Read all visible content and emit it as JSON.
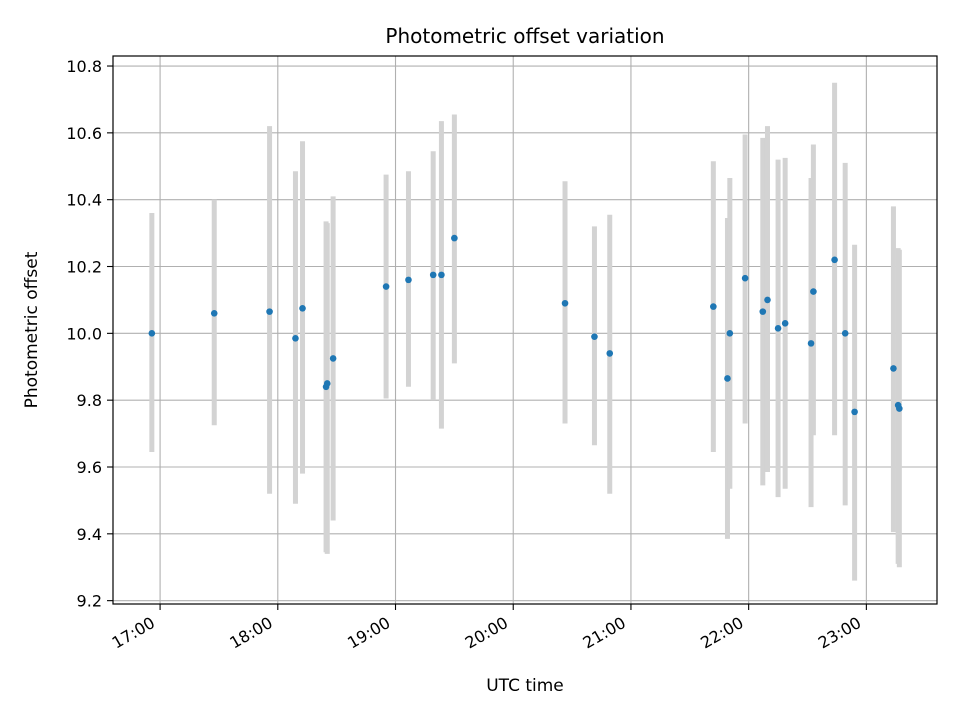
{
  "chart_data": {
    "type": "scatter",
    "title": "Photometric offset variation",
    "xlabel": "UTC time",
    "ylabel": "Photometric offset",
    "x_unit": "UTC time (hours)",
    "xlim": [
      16.6,
      23.6
    ],
    "ylim": [
      9.19,
      10.83
    ],
    "x_ticks": [
      17,
      18,
      19,
      20,
      21,
      22,
      23
    ],
    "x_tick_labels": [
      "17:00",
      "18:00",
      "19:00",
      "20:00",
      "21:00",
      "22:00",
      "23:00"
    ],
    "y_ticks": [
      9.2,
      9.4,
      9.6,
      9.8,
      10.0,
      10.2,
      10.4,
      10.6,
      10.8
    ],
    "y_tick_labels": [
      "9.2",
      "9.4",
      "9.6",
      "9.8",
      "10.0",
      "10.2",
      "10.4",
      "10.6",
      "10.8"
    ],
    "grid": true,
    "colors": {
      "point": "#1f77b4",
      "errorbar": "#d3d3d3",
      "grid": "#b0b0b0"
    },
    "points": [
      {
        "x": 16.93,
        "y": 10.0,
        "ylow": 9.645,
        "yhigh": 10.36
      },
      {
        "x": 17.46,
        "y": 10.06,
        "ylow": 9.725,
        "yhigh": 10.4
      },
      {
        "x": 17.93,
        "y": 10.065,
        "ylow": 9.52,
        "yhigh": 10.62
      },
      {
        "x": 18.15,
        "y": 9.985,
        "ylow": 9.49,
        "yhigh": 10.485
      },
      {
        "x": 18.21,
        "y": 10.075,
        "ylow": 9.58,
        "yhigh": 10.575
      },
      {
        "x": 18.41,
        "y": 9.84,
        "ylow": 9.345,
        "yhigh": 10.335
      },
      {
        "x": 18.42,
        "y": 9.85,
        "ylow": 9.34,
        "yhigh": 10.33
      },
      {
        "x": 18.47,
        "y": 9.925,
        "ylow": 9.44,
        "yhigh": 10.41
      },
      {
        "x": 18.92,
        "y": 10.14,
        "ylow": 9.805,
        "yhigh": 10.475
      },
      {
        "x": 19.11,
        "y": 10.16,
        "ylow": 9.84,
        "yhigh": 10.485
      },
      {
        "x": 19.32,
        "y": 10.175,
        "ylow": 9.8,
        "yhigh": 10.545
      },
      {
        "x": 19.39,
        "y": 10.175,
        "ylow": 9.715,
        "yhigh": 10.635
      },
      {
        "x": 19.5,
        "y": 10.285,
        "ylow": 9.91,
        "yhigh": 10.655
      },
      {
        "x": 20.44,
        "y": 10.09,
        "ylow": 9.73,
        "yhigh": 10.455
      },
      {
        "x": 20.69,
        "y": 9.99,
        "ylow": 9.665,
        "yhigh": 10.32
      },
      {
        "x": 20.82,
        "y": 9.94,
        "ylow": 9.52,
        "yhigh": 10.355
      },
      {
        "x": 21.7,
        "y": 10.08,
        "ylow": 9.645,
        "yhigh": 10.515
      },
      {
        "x": 21.82,
        "y": 9.865,
        "ylow": 9.385,
        "yhigh": 10.345
      },
      {
        "x": 21.84,
        "y": 10.0,
        "ylow": 9.535,
        "yhigh": 10.465
      },
      {
        "x": 21.97,
        "y": 10.165,
        "ylow": 9.73,
        "yhigh": 10.595
      },
      {
        "x": 22.12,
        "y": 10.065,
        "ylow": 9.545,
        "yhigh": 10.585
      },
      {
        "x": 22.16,
        "y": 10.1,
        "ylow": 9.585,
        "yhigh": 10.62
      },
      {
        "x": 22.25,
        "y": 10.015,
        "ylow": 9.51,
        "yhigh": 10.52
      },
      {
        "x": 22.31,
        "y": 10.03,
        "ylow": 9.535,
        "yhigh": 10.525
      },
      {
        "x": 22.53,
        "y": 9.97,
        "ylow": 9.48,
        "yhigh": 10.465
      },
      {
        "x": 22.55,
        "y": 10.125,
        "ylow": 9.695,
        "yhigh": 10.565
      },
      {
        "x": 22.73,
        "y": 10.22,
        "ylow": 9.695,
        "yhigh": 10.75
      },
      {
        "x": 22.82,
        "y": 10.0,
        "ylow": 9.485,
        "yhigh": 10.51
      },
      {
        "x": 22.9,
        "y": 9.765,
        "ylow": 9.26,
        "yhigh": 10.265
      },
      {
        "x": 23.23,
        "y": 9.895,
        "ylow": 9.405,
        "yhigh": 10.38
      },
      {
        "x": 23.27,
        "y": 9.785,
        "ylow": 9.31,
        "yhigh": 10.255
      },
      {
        "x": 23.28,
        "y": 9.775,
        "ylow": 9.3,
        "yhigh": 10.25
      }
    ]
  }
}
